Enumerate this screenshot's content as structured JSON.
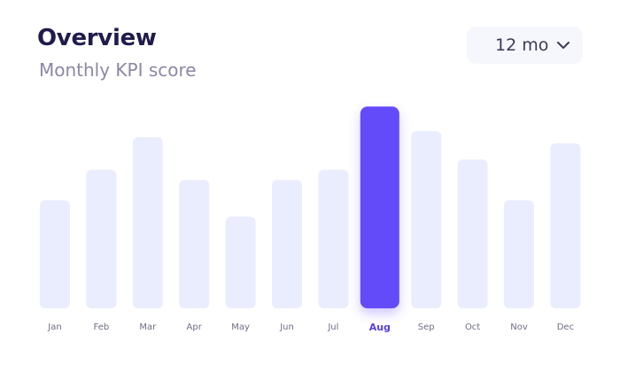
{
  "header": {
    "title": "Overview",
    "subtitle": "Monthly KPI score"
  },
  "range_select": {
    "value": "12 mo",
    "icon": "chevron-down-icon"
  },
  "colors": {
    "bar": "#eaedfd",
    "bar_active": "#634cf9",
    "label_active": "#5a3de6"
  },
  "chart_data": {
    "type": "bar",
    "categories": [
      "Jan",
      "Feb",
      "Mar",
      "Apr",
      "May",
      "Jun",
      "Jul",
      "Aug",
      "Sep",
      "Oct",
      "Nov",
      "Dec"
    ],
    "values": [
      53,
      68,
      84,
      63,
      45,
      63,
      68,
      99,
      87,
      73,
      53,
      81
    ],
    "highlighted": "Aug",
    "ylim": [
      0,
      100
    ],
    "grid": false,
    "legend": "none",
    "title": "",
    "xlabel": "",
    "ylabel": ""
  }
}
